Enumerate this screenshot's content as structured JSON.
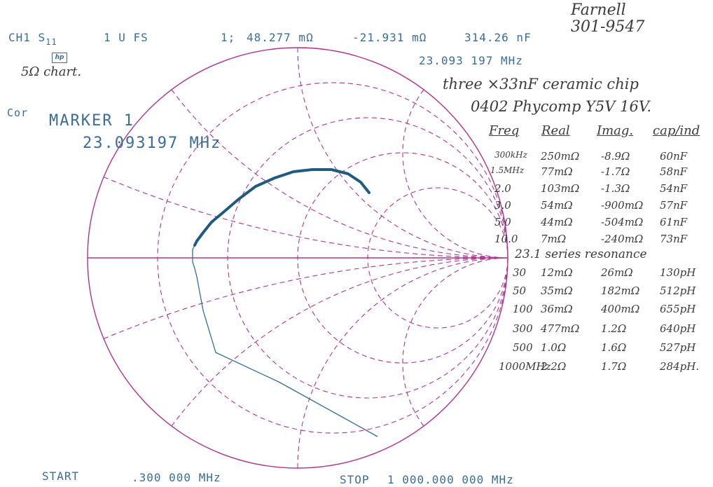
{
  "header": {
    "channel": "CH1 S",
    "channel_sub": "11",
    "scale": "1 U FS",
    "marker_prefix": "1;",
    "marker_real": "48.277 mΩ",
    "marker_imag": "-21.931 mΩ",
    "marker_cap": "314.26 nF",
    "marker_freq": "23.093 197 MHz",
    "cor": "Cor",
    "marker_label": "MARKER 1",
    "marker_big_freq": "23.093197 MHz",
    "logo": "hp"
  },
  "footer": {
    "start_label": "START",
    "start_value": ".300 000 MHz",
    "stop_label": "STOP",
    "stop_value": "1 000.000 000 MHz"
  },
  "notes": {
    "farnell_1": "Farnell",
    "farnell_2": "301-9547",
    "chart_note": "5Ω chart.",
    "title_1": "three ×33nF ceramic chip",
    "title_2": "0402 Phycomp Y5V 16V."
  },
  "table": {
    "headers": [
      "Freq",
      "Real",
      "Imag.",
      "cap/ind"
    ],
    "rows": [
      [
        "300kHz",
        "250mΩ",
        "-8.9Ω",
        "60nF"
      ],
      [
        "1.5MHz",
        "77mΩ",
        "-1.7Ω",
        "58nF"
      ],
      [
        "2.0",
        "103mΩ",
        "-1.3Ω",
        "54nF"
      ],
      [
        "3.0",
        "54mΩ",
        "-900mΩ",
        "57nF"
      ],
      [
        "5.0",
        "44mΩ",
        "-504mΩ",
        "61nF"
      ],
      [
        "10.0",
        "7mΩ",
        "-240mΩ",
        "73nF"
      ],
      [
        "23.1 series resonance",
        "",
        "",
        ""
      ],
      [
        "30",
        "12mΩ",
        "26mΩ",
        "130pH"
      ],
      [
        "50",
        "35mΩ",
        "182mΩ",
        "512pH"
      ],
      [
        "100",
        "36mΩ",
        "400mΩ",
        "655pH"
      ],
      [
        "300",
        "477mΩ",
        "1.2Ω",
        "640pH"
      ],
      [
        "500",
        "1.0Ω",
        "1.6Ω",
        "527pH"
      ],
      [
        "1000MHz",
        "2.2Ω",
        "1.7Ω",
        "284pH."
      ]
    ]
  },
  "colors": {
    "grid": "#b0338f",
    "trace": "#2f6f9a",
    "trace_dense": "#1f5a80",
    "print_text": "#3a6d9a"
  },
  "chart_data": {
    "type": "smith",
    "series": [
      {
        "data_format": "reflection coefficient [re, im], normalized to full scale",
        "gamma": [
          [
            0.34,
            0.31
          ],
          [
            0.3,
            0.36
          ],
          [
            0.24,
            0.4
          ],
          [
            0.16,
            0.42
          ],
          [
            0.07,
            0.42
          ],
          [
            -0.02,
            0.41
          ],
          [
            -0.11,
            0.38
          ],
          [
            -0.2,
            0.34
          ],
          [
            -0.28,
            0.28
          ],
          [
            -0.35,
            0.22
          ],
          [
            -0.41,
            0.17
          ],
          [
            -0.45,
            0.12
          ],
          [
            -0.48,
            0.08
          ],
          [
            -0.49,
            0.06
          ],
          [
            -0.5,
            0.04
          ],
          [
            -0.5,
            0.02
          ],
          [
            -0.5,
            -0.01
          ],
          [
            -0.5,
            -0.02
          ],
          [
            -0.49,
            -0.05
          ],
          [
            -0.48,
            -0.09
          ],
          [
            -0.45,
            -0.25
          ],
          [
            -0.39,
            -0.45
          ],
          [
            -0.09,
            -0.59
          ],
          [
            0.38,
            -0.85
          ]
        ]
      }
    ]
  }
}
